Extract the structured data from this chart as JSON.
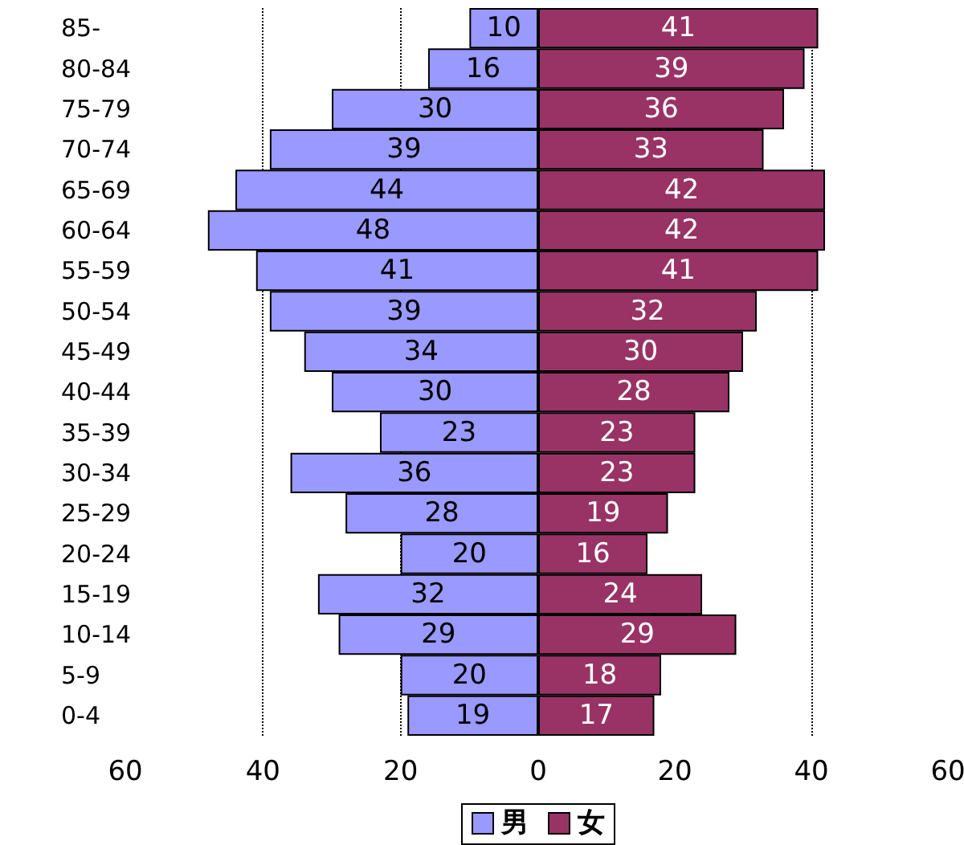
{
  "chart_data": [
    {
      "type": "bar",
      "orientation": "horizontal",
      "categories": [
        "85-",
        "80-84",
        "75-79",
        "70-74",
        "65-69",
        "60-64",
        "55-59",
        "50-54",
        "45-49",
        "40-44",
        "35-39",
        "30-34",
        "25-29",
        "20-24",
        "15-19",
        "10-14",
        "5-9",
        "0-4"
      ],
      "series": [
        {
          "name": "男",
          "color": "#9999ff",
          "values": [
            10,
            16,
            30,
            39,
            44,
            48,
            41,
            39,
            34,
            30,
            23,
            36,
            28,
            20,
            32,
            29,
            20,
            19
          ]
        }
      ],
      "xlim": [
        60,
        0
      ],
      "xticks": [
        60,
        40,
        20,
        0
      ],
      "grid": "x",
      "legend": "bottom",
      "data_labels": true
    },
    {
      "type": "bar",
      "orientation": "horizontal",
      "categories": [
        null,
        null,
        null,
        null,
        null,
        null,
        null,
        null,
        null,
        null,
        null,
        null,
        null,
        null,
        null,
        null,
        null,
        null
      ],
      "series": [
        {
          "name": "女",
          "color": "#993366",
          "values": [
            41,
            39,
            36,
            33,
            42,
            42,
            41,
            32,
            30,
            28,
            23,
            23,
            19,
            16,
            24,
            29,
            18,
            17
          ]
        }
      ],
      "xlim": [
        0,
        60
      ],
      "xticks": [
        20,
        40,
        60
      ],
      "grid": "x",
      "legend": "bottom",
      "data_labels": true,
      "tick_labels": "x"
    }
  ]
}
